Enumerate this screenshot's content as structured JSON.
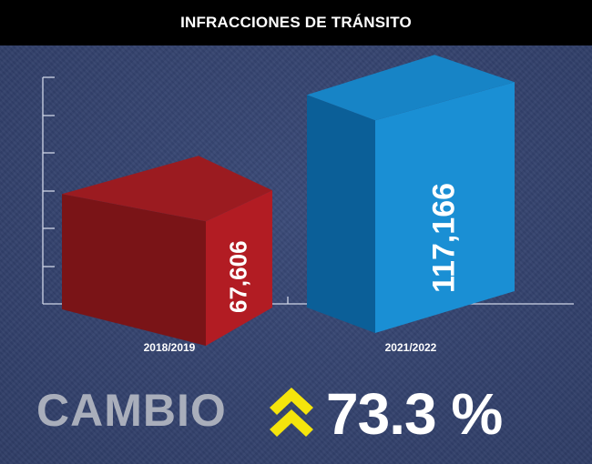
{
  "header": {
    "title": "INFRACCIONES DE TRÁNSITO"
  },
  "chart_data": {
    "type": "bar",
    "categories": [
      "2018/2019",
      "2021/2022"
    ],
    "values": [
      67606,
      117166
    ],
    "value_labels": [
      "67,606",
      "117,166"
    ],
    "colors": [
      "#a01a1f",
      "#1481c4"
    ],
    "title": "INFRACCIONES DE TRÁNSITO",
    "xlabel": "",
    "ylabel": "",
    "grid": false
  },
  "change": {
    "label": "CAMBIO",
    "value": "73.3 %",
    "direction": "up",
    "icon": "double-chevron-up-icon",
    "icon_color": "#f5e50c"
  }
}
